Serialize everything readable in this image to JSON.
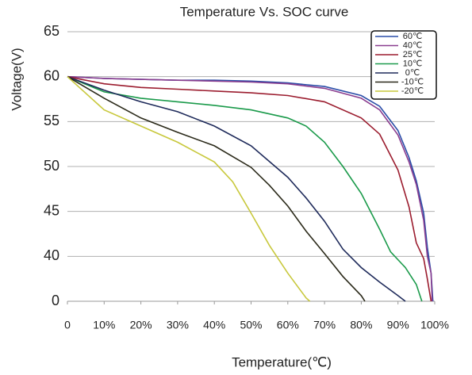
{
  "chart_data": {
    "type": "line",
    "title": "Temperature Vs. SOC curve",
    "y_label": "Voltage(V)",
    "x_label": "Temperature(℃)",
    "xlim": [
      0,
      100
    ],
    "xticks": [
      0,
      {
        "value": 10,
        "label": "10%"
      },
      {
        "value": 20,
        "label": "20%"
      },
      {
        "value": 30,
        "label": "30%"
      },
      {
        "value": 40,
        "label": "40%"
      },
      {
        "value": 50,
        "label": "50%"
      },
      {
        "value": 60,
        "label": "60%"
      },
      {
        "value": 70,
        "label": "70%"
      },
      {
        "value": 80,
        "label": "80%"
      },
      {
        "value": 90,
        "label": "90%"
      },
      {
        "value": 100,
        "label": "100%"
      }
    ],
    "ylim": [
      0,
      65
    ],
    "yticks": [
      0,
      40,
      45,
      50,
      55,
      60,
      65
    ],
    "grid": true,
    "legend": "top-right",
    "series": [
      {
        "name": "60℃",
        "color": "#2a4da8",
        "x": [
          0,
          10,
          20,
          30,
          40,
          50,
          60,
          70,
          80,
          85,
          90,
          93,
          95,
          97,
          98,
          99,
          99.5
        ],
        "values": [
          60,
          59.8,
          59.7,
          59.6,
          59.6,
          59.5,
          59.3,
          58.9,
          57.9,
          56.7,
          54,
          51,
          48.4,
          44.8,
          41,
          25,
          0
        ]
      },
      {
        "name": "40℃",
        "color": "#8a3d8f",
        "x": [
          0,
          10,
          20,
          30,
          40,
          50,
          60,
          70,
          80,
          85,
          90,
          93,
          95,
          97,
          98,
          99,
          99.3
        ],
        "values": [
          60,
          59.8,
          59.7,
          59.6,
          59.5,
          59.4,
          59.2,
          58.7,
          57.6,
          56.3,
          53.5,
          50.5,
          48,
          44,
          40,
          25,
          0
        ]
      },
      {
        "name": "25℃",
        "color": "#9b1c2e",
        "x": [
          0,
          10,
          20,
          30,
          40,
          50,
          60,
          70,
          80,
          85,
          90,
          93,
          95,
          97,
          98,
          99
        ],
        "values": [
          60,
          59.2,
          58.8,
          58.6,
          58.4,
          58.2,
          57.9,
          57.2,
          55.4,
          53.6,
          49.6,
          45.5,
          41.5,
          38,
          20,
          0
        ]
      },
      {
        "name": "10℃",
        "color": "#1a9a4a",
        "x": [
          0,
          10,
          20,
          30,
          40,
          50,
          60,
          65,
          70,
          75,
          80,
          85,
          88,
          92,
          95,
          96.5
        ],
        "values": [
          60,
          58.3,
          57.6,
          57.2,
          56.8,
          56.3,
          55.4,
          54.5,
          52.7,
          50,
          47,
          43,
          40.5,
          30,
          15,
          0
        ]
      },
      {
        "name": "0℃",
        "color": "#1e2a5a",
        "x": [
          0,
          10,
          20,
          30,
          40,
          50,
          60,
          65,
          70,
          75,
          80,
          85,
          90,
          92
        ],
        "values": [
          60,
          58.5,
          57.2,
          56.1,
          54.5,
          52.3,
          48.8,
          46.5,
          43.9,
          40.8,
          30,
          17,
          5,
          0
        ]
      },
      {
        "name": "-10℃",
        "color": "#2b2a1a",
        "x": [
          0,
          10,
          20,
          30,
          40,
          50,
          55,
          60,
          65,
          70,
          75,
          80,
          81
        ],
        "values": [
          60,
          57.6,
          55.4,
          53.8,
          52.3,
          49.9,
          47.9,
          45.6,
          42.8,
          40.3,
          22,
          5,
          0
        ]
      },
      {
        "name": "-20℃",
        "color": "#c8c83c",
        "x": [
          0,
          10,
          20,
          30,
          40,
          45,
          50,
          55,
          60,
          65,
          66
        ],
        "values": [
          60,
          56.3,
          54.5,
          52.7,
          50.5,
          48.3,
          44.8,
          41.2,
          25,
          3,
          0
        ]
      }
    ]
  }
}
